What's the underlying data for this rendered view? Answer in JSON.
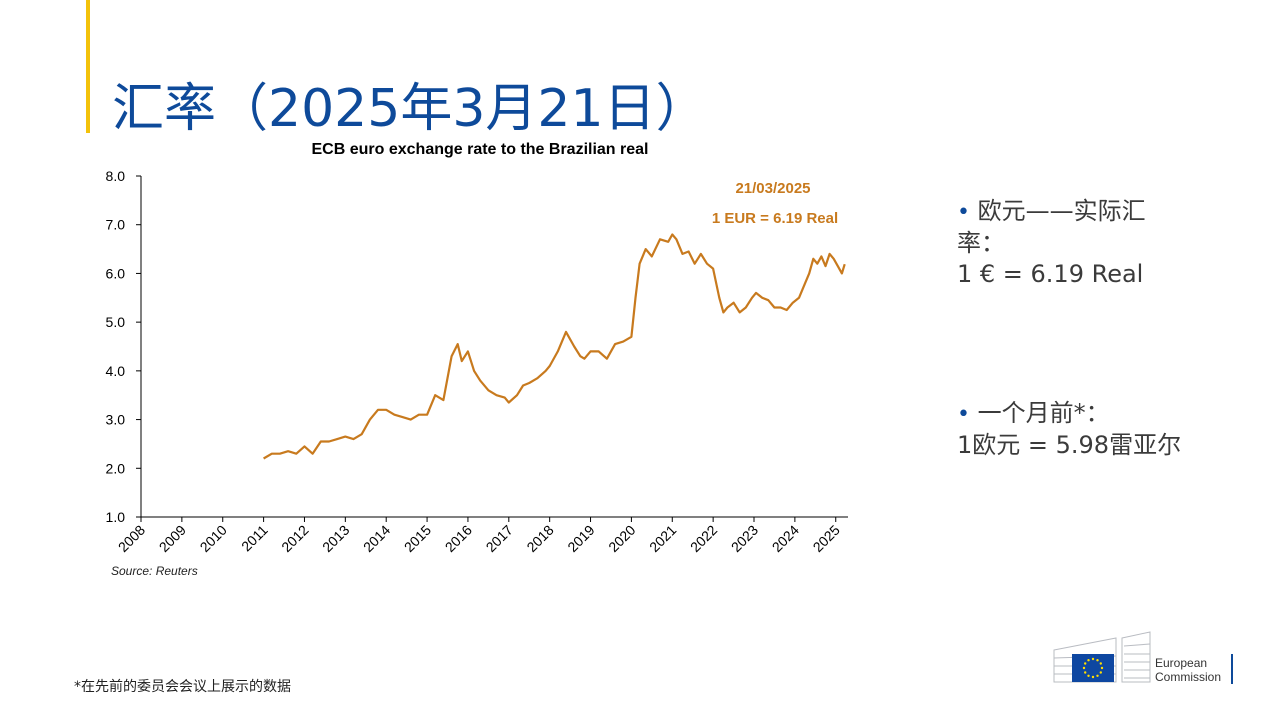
{
  "slide": {
    "title": "汇率（2025年3月21日）",
    "source": "Source: Reuters",
    "footnote": "*在先前的委员会会议上展示的数据"
  },
  "bullets": {
    "b1_line1": "欧元——实际汇",
    "b1_line2": "率：",
    "b1_line3": "1 € = 6.19 Real",
    "b2_line1": "一个月前*：",
    "b2_line2": "1欧元 = 5.98雷亚尔"
  },
  "logo": {
    "line1": "European",
    "line2": "Commission",
    "flag_color": "#0e47a1",
    "star_color": "#ffdd00"
  },
  "colors": {
    "title": "#0e4a9a",
    "accent": "#f3c20a",
    "series": "#c87a1e"
  },
  "chart_data": {
    "type": "line",
    "title": "ECB euro exchange rate to the Brazilian real",
    "ylim": [
      1.0,
      8.0
    ],
    "yticks": [
      "1.0",
      "2.0",
      "3.0",
      "4.0",
      "5.0",
      "6.0",
      "7.0",
      "8.0"
    ],
    "xlim": [
      2008,
      2025.3
    ],
    "xticks": [
      "2008",
      "2009",
      "2010",
      "2011",
      "2012",
      "2013",
      "2014",
      "2015",
      "2016",
      "2017",
      "2018",
      "2019",
      "2020",
      "2021",
      "2022",
      "2023",
      "2024",
      "2025"
    ],
    "annotation_date": "21/03/2025",
    "annotation_value": "1 EUR = 6.19 Real",
    "series": [
      {
        "color": "#c87a1e",
        "x": [
          2011.0,
          2011.2,
          2011.4,
          2011.6,
          2011.8,
          2012.0,
          2012.2,
          2012.4,
          2012.6,
          2012.8,
          2013.0,
          2013.2,
          2013.4,
          2013.6,
          2013.8,
          2014.0,
          2014.2,
          2014.4,
          2014.6,
          2014.8,
          2015.0,
          2015.2,
          2015.4,
          2015.6,
          2015.75,
          2015.85,
          2016.0,
          2016.15,
          2016.3,
          2016.5,
          2016.7,
          2016.9,
          2017.0,
          2017.2,
          2017.35,
          2017.5,
          2017.7,
          2017.9,
          2018.0,
          2018.2,
          2018.4,
          2018.6,
          2018.75,
          2018.85,
          2019.0,
          2019.2,
          2019.4,
          2019.6,
          2019.8,
          2020.0,
          2020.1,
          2020.2,
          2020.35,
          2020.5,
          2020.7,
          2020.9,
          2021.0,
          2021.1,
          2021.25,
          2021.4,
          2021.55,
          2021.7,
          2021.85,
          2022.0,
          2022.15,
          2022.25,
          2022.35,
          2022.5,
          2022.65,
          2022.8,
          2022.95,
          2023.05,
          2023.2,
          2023.35,
          2023.5,
          2023.65,
          2023.8,
          2023.95,
          2024.1,
          2024.25,
          2024.35,
          2024.45,
          2024.55,
          2024.65,
          2024.75,
          2024.85,
          2024.95,
          2025.05,
          2025.15,
          2025.22
        ],
        "y": [
          2.2,
          2.3,
          2.3,
          2.35,
          2.3,
          2.45,
          2.3,
          2.55,
          2.55,
          2.6,
          2.65,
          2.6,
          2.7,
          3.0,
          3.2,
          3.2,
          3.1,
          3.05,
          3.0,
          3.1,
          3.1,
          3.5,
          3.4,
          4.3,
          4.55,
          4.2,
          4.4,
          4.0,
          3.8,
          3.6,
          3.5,
          3.45,
          3.35,
          3.5,
          3.7,
          3.75,
          3.85,
          4.0,
          4.1,
          4.4,
          4.8,
          4.5,
          4.3,
          4.25,
          4.4,
          4.4,
          4.25,
          4.55,
          4.6,
          4.7,
          5.5,
          6.2,
          6.5,
          6.35,
          6.7,
          6.65,
          6.8,
          6.7,
          6.4,
          6.45,
          6.2,
          6.4,
          6.2,
          6.1,
          5.5,
          5.2,
          5.3,
          5.4,
          5.2,
          5.3,
          5.5,
          5.6,
          5.5,
          5.45,
          5.3,
          5.3,
          5.25,
          5.4,
          5.5,
          5.8,
          6.0,
          6.3,
          6.2,
          6.35,
          6.15,
          6.4,
          6.3,
          6.15,
          6.0,
          6.19
        ]
      }
    ]
  }
}
